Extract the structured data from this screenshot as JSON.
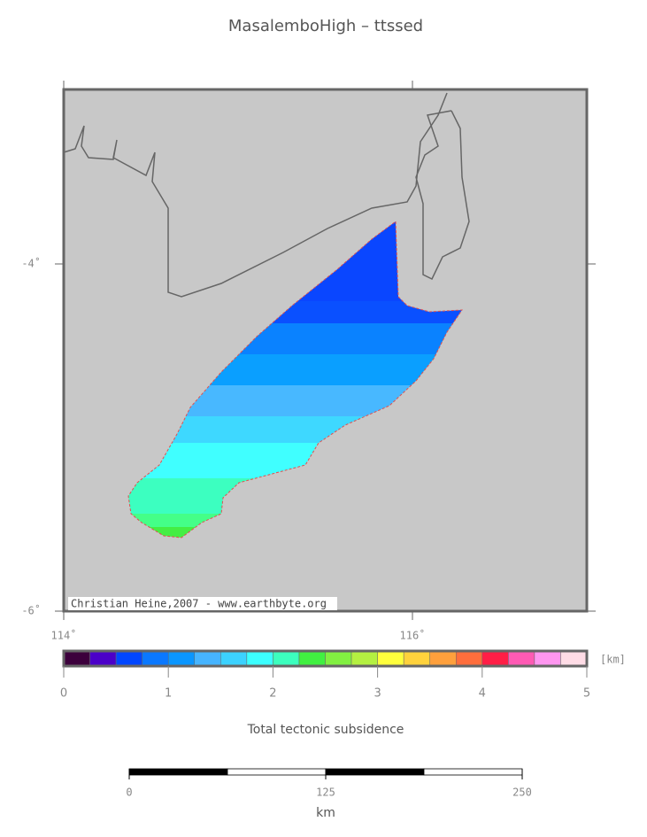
{
  "title": "MasalemboHigh – ttssed",
  "map": {
    "lat_ticks": [
      {
        "value": -4,
        "label": "-4˚"
      },
      {
        "value": -6,
        "label": "-6˚"
      }
    ],
    "lon_ticks": [
      {
        "value": 114,
        "label": "114˚"
      },
      {
        "value": 116,
        "label": "116˚"
      }
    ],
    "credit": "Christian Heine,2007 - www.earthbyte.org"
  },
  "colorbar": {
    "colors": [
      "#3c003c",
      "#4b00c8",
      "#0046ff",
      "#0a78ff",
      "#0a96ff",
      "#46b4ff",
      "#3cd2ff",
      "#3cffff",
      "#3cffbe",
      "#41f041",
      "#82f041",
      "#b4f041",
      "#ffff3c",
      "#ffd23c",
      "#ffa03c",
      "#ff6e3c",
      "#ff1e46",
      "#ff5ab4",
      "#ff96f0",
      "#ffdce6"
    ],
    "ticks": [
      0,
      1,
      2,
      3,
      4,
      5
    ],
    "unit": "[km]",
    "label": "Total tectonic subsidence"
  },
  "scalebar": {
    "ticks": [
      0,
      125,
      250
    ],
    "unit": "km"
  }
}
